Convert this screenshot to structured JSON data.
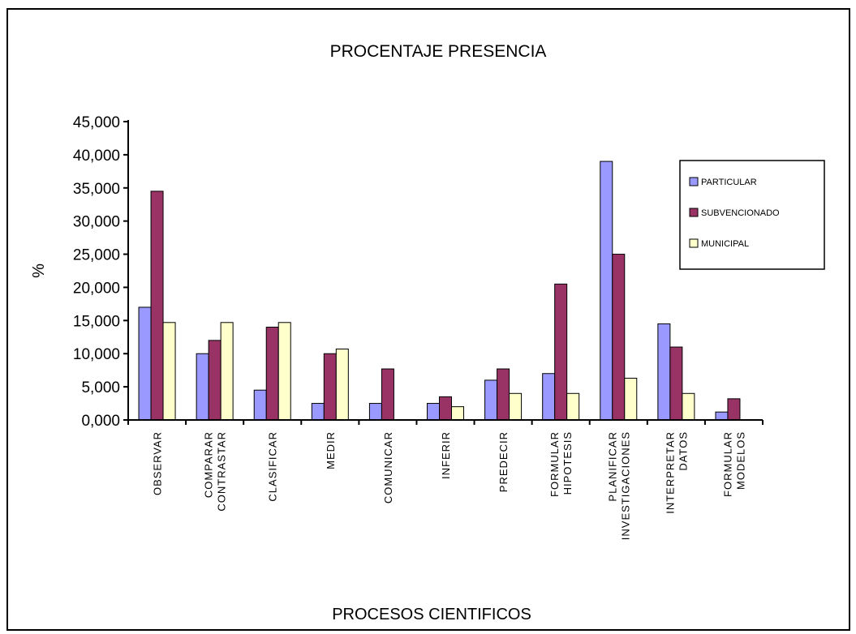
{
  "chart_data": {
    "type": "bar",
    "title": "PROCENTAJE PRESENCIA",
    "xlabel": "PROCESOS CIENTIFICOS",
    "ylabel": "%",
    "ylim": [
      0,
      45
    ],
    "yticks": [
      0,
      5,
      10,
      15,
      20,
      25,
      30,
      35,
      40,
      45
    ],
    "ytick_labels": [
      "0,000",
      "5,000",
      "10,000",
      "15,000",
      "20,000",
      "25,000",
      "30,000",
      "35,000",
      "40,000",
      "45,000"
    ],
    "categories": [
      [
        "OBSERVAR"
      ],
      [
        "COMPARAR",
        "CONTRASTAR"
      ],
      [
        "CLASIFICAR"
      ],
      [
        "MEDIR"
      ],
      [
        "COMUNICAR"
      ],
      [
        "INFERIR"
      ],
      [
        "PREDECIR"
      ],
      [
        "FORMULAR",
        "HIPOTESIS"
      ],
      [
        "PLANIFICAR",
        "INVESTIGACIONES"
      ],
      [
        "INTERPRETAR",
        "DATOS"
      ],
      [
        "FORMULAR",
        "MODELOS"
      ]
    ],
    "series": [
      {
        "name": "PARTICULAR",
        "color": "#9999ff",
        "values": [
          17.0,
          10.0,
          4.5,
          2.5,
          2.5,
          2.5,
          6.0,
          7.0,
          39.0,
          14.5,
          1.2
        ]
      },
      {
        "name": "SUBVENCIONADO",
        "color": "#993366",
        "values": [
          34.5,
          12.0,
          14.0,
          10.0,
          7.7,
          3.5,
          7.7,
          20.5,
          25.0,
          11.0,
          3.2
        ]
      },
      {
        "name": "MUNICIPAL",
        "color": "#ffffcc",
        "values": [
          14.7,
          14.7,
          14.7,
          10.7,
          0,
          2.0,
          4.0,
          4.0,
          6.3,
          4.0,
          0
        ]
      }
    ],
    "legend": "right",
    "grid": false
  }
}
